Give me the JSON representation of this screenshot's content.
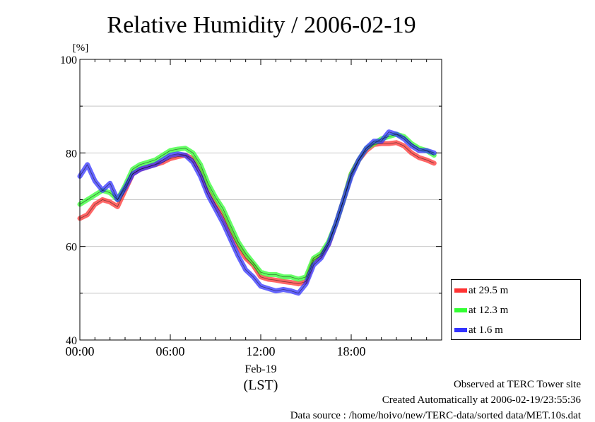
{
  "chart_data": {
    "type": "line",
    "title": "Relative Humidity / 2006-02-19",
    "ylabel": "[%]",
    "ylim": [
      40,
      100
    ],
    "yticks": [
      40,
      60,
      80,
      100
    ],
    "y_minor_grid": [
      50,
      70,
      90
    ],
    "xlim": [
      0,
      24
    ],
    "x_unit": "hours (LST)",
    "xticks": [
      {
        "value": 0,
        "label": "00:00"
      },
      {
        "value": 6,
        "label": "06:00"
      },
      {
        "value": 12,
        "label": "12:00"
      },
      {
        "value": 18,
        "label": "18:00"
      }
    ],
    "date_label": "Feb-19",
    "time_zone_label": "(LST)",
    "grid": true,
    "legend_position": "bottom-right outside",
    "series": [
      {
        "name": "at 29.5 m",
        "color": "#ff3333",
        "x": [
          0.0,
          0.5,
          1.0,
          1.5,
          2.0,
          2.5,
          3.0,
          3.5,
          4.0,
          4.5,
          5.0,
          5.5,
          6.0,
          6.5,
          7.0,
          7.5,
          8.0,
          8.5,
          9.0,
          9.5,
          10.0,
          10.5,
          11.0,
          11.5,
          12.0,
          12.5,
          13.0,
          13.5,
          14.0,
          14.5,
          15.0,
          15.5,
          16.0,
          16.5,
          17.0,
          17.5,
          18.0,
          18.5,
          19.0,
          19.5,
          20.0,
          20.5,
          21.0,
          21.5,
          22.0,
          22.5,
          23.0,
          23.5
        ],
        "values": [
          66.0,
          66.8,
          69.0,
          70.0,
          69.5,
          68.5,
          72.0,
          75.5,
          76.5,
          77.0,
          77.5,
          78.0,
          78.8,
          79.2,
          79.5,
          78.8,
          76.0,
          72.0,
          69.0,
          66.5,
          63.0,
          60.0,
          57.5,
          56.0,
          53.5,
          53.0,
          52.8,
          52.5,
          52.3,
          52.0,
          52.5,
          57.0,
          58.0,
          60.5,
          65.0,
          70.0,
          75.5,
          78.5,
          80.5,
          81.8,
          82.0,
          82.0,
          82.2,
          81.5,
          80.0,
          79.0,
          78.5,
          77.8
        ]
      },
      {
        "name": "at 12.3 m",
        "color": "#33ff33",
        "x": [
          0.0,
          0.5,
          1.0,
          1.5,
          2.0,
          2.5,
          3.0,
          3.5,
          4.0,
          4.5,
          5.0,
          5.5,
          6.0,
          6.5,
          7.0,
          7.5,
          8.0,
          8.5,
          9.0,
          9.5,
          10.0,
          10.5,
          11.0,
          11.5,
          12.0,
          12.5,
          13.0,
          13.5,
          14.0,
          14.5,
          15.0,
          15.5,
          16.0,
          16.5,
          17.0,
          17.5,
          18.0,
          18.5,
          19.0,
          19.5,
          20.0,
          20.5,
          21.0,
          21.5,
          22.0,
          22.5,
          23.0,
          23.5
        ],
        "values": [
          69.0,
          70.0,
          71.0,
          72.0,
          71.5,
          70.0,
          73.0,
          76.5,
          77.5,
          78.0,
          78.5,
          79.5,
          80.5,
          80.8,
          81.0,
          80.0,
          77.5,
          73.5,
          70.5,
          68.0,
          64.5,
          61.0,
          58.5,
          56.5,
          54.5,
          54.0,
          54.0,
          53.5,
          53.5,
          53.0,
          53.5,
          57.5,
          58.5,
          61.0,
          65.0,
          70.0,
          75.5,
          78.5,
          81.0,
          82.0,
          83.0,
          83.5,
          84.0,
          83.5,
          82.0,
          81.0,
          80.5,
          79.5
        ]
      },
      {
        "name": "at 1.6 m",
        "color": "#3333ff",
        "x": [
          0.0,
          0.5,
          1.0,
          1.5,
          2.0,
          2.5,
          3.0,
          3.5,
          4.0,
          4.5,
          5.0,
          5.5,
          6.0,
          6.5,
          7.0,
          7.5,
          8.0,
          8.5,
          9.0,
          9.5,
          10.0,
          10.5,
          11.0,
          11.5,
          12.0,
          12.5,
          13.0,
          13.5,
          14.0,
          14.5,
          15.0,
          15.5,
          16.0,
          16.5,
          17.0,
          17.5,
          18.0,
          18.5,
          19.0,
          19.5,
          20.0,
          20.5,
          21.0,
          21.5,
          22.0,
          22.5,
          23.0,
          23.5
        ],
        "values": [
          75.0,
          77.5,
          74.0,
          72.0,
          73.5,
          70.0,
          72.5,
          75.5,
          76.5,
          77.0,
          77.5,
          78.5,
          79.5,
          79.8,
          79.5,
          78.0,
          75.0,
          71.0,
          68.0,
          65.0,
          61.5,
          58.0,
          55.0,
          53.5,
          51.5,
          51.0,
          50.5,
          50.8,
          50.5,
          50.0,
          52.0,
          56.0,
          57.5,
          60.5,
          65.0,
          70.0,
          75.0,
          78.5,
          81.0,
          82.5,
          82.5,
          84.5,
          84.0,
          83.0,
          81.5,
          80.5,
          80.5,
          80.0
        ]
      }
    ]
  },
  "footer": {
    "line1": "Observed at TERC Tower site",
    "line2": "Created Automatically at 2006-02-19/23:55:36",
    "line3": "Data source : /home/hoivo/new/TERC-data/sorted  data/MET.10s.dat"
  }
}
